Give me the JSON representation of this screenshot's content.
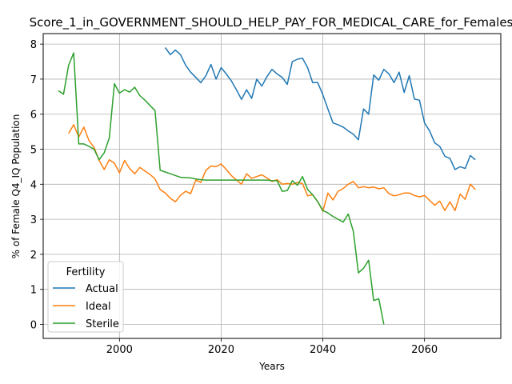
{
  "chart_data": {
    "type": "line",
    "title": "Score_1_in_GOVERNMENT_SHOULD_HELP_PAY_FOR_MEDICAL_CARE_for_Females",
    "xlabel": "Years",
    "ylabel": "% of Female Q4_IQ Population",
    "xlim": [
      1985,
      2075
    ],
    "ylim": [
      -0.4,
      8.3
    ],
    "xticks": [
      2000,
      2020,
      2040,
      2060
    ],
    "yticks": [
      0,
      1,
      2,
      3,
      4,
      5,
      6,
      7,
      8
    ],
    "grid": true,
    "legend": {
      "title": "Fertility",
      "placement": "lower-left"
    },
    "series": [
      {
        "name": "Actual",
        "color": "#1f77b4",
        "x": [
          2009,
          2010,
          2011,
          2012,
          2013,
          2014,
          2015,
          2016,
          2017,
          2018,
          2019,
          2020,
          2021,
          2022,
          2023,
          2024,
          2025,
          2026,
          2027,
          2028,
          2029,
          2030,
          2031,
          2032,
          2033,
          2034,
          2035,
          2036,
          2037,
          2038,
          2039,
          2040,
          2041,
          2042,
          2043,
          2044,
          2045,
          2046,
          2047,
          2048,
          2049,
          2050,
          2051,
          2052,
          2053,
          2054,
          2055,
          2056,
          2057,
          2058,
          2059,
          2060,
          2061,
          2062,
          2063,
          2064,
          2065,
          2066,
          2067,
          2068,
          2069,
          2070
        ],
        "y": [
          7.9,
          7.7,
          7.83,
          7.7,
          7.4,
          7.2,
          7.05,
          6.9,
          7.1,
          7.42,
          7.0,
          7.33,
          7.15,
          6.95,
          6.7,
          6.42,
          6.7,
          6.45,
          7.0,
          6.8,
          7.07,
          7.28,
          7.15,
          7.05,
          6.85,
          7.5,
          7.57,
          7.6,
          7.33,
          6.9,
          6.9,
          6.55,
          6.15,
          5.75,
          5.7,
          5.63,
          5.52,
          5.43,
          5.27,
          6.15,
          6.0,
          7.12,
          6.97,
          7.28,
          7.15,
          6.9,
          7.2,
          6.62,
          7.1,
          6.43,
          6.4,
          5.75,
          5.52,
          5.18,
          5.08,
          4.8,
          4.74,
          4.42,
          4.5,
          4.45,
          4.82,
          4.7
        ]
      },
      {
        "name": "Ideal",
        "color": "#ff7f0e",
        "x": [
          1990,
          1991,
          1992,
          1993,
          1994,
          1995,
          1996,
          1997,
          1998,
          1999,
          2000,
          2001,
          2002,
          2003,
          2004,
          2005,
          2006,
          2007,
          2008,
          2009,
          2010,
          2011,
          2012,
          2013,
          2014,
          2015,
          2016,
          2017,
          2018,
          2019,
          2020,
          2021,
          2022,
          2023,
          2024,
          2025,
          2026,
          2027,
          2028,
          2029,
          2030,
          2031,
          2032,
          2033,
          2034,
          2035,
          2036,
          2037,
          2038,
          2039,
          2040,
          2041,
          2042,
          2043,
          2044,
          2045,
          2046,
          2047,
          2048,
          2049,
          2050,
          2051,
          2052,
          2053,
          2054,
          2055,
          2056,
          2057,
          2058,
          2059,
          2060,
          2061,
          2062,
          2063,
          2064,
          2065,
          2066,
          2067,
          2068,
          2069,
          2070
        ],
        "y": [
          5.45,
          5.7,
          5.35,
          5.63,
          5.25,
          5.05,
          4.68,
          4.42,
          4.7,
          4.6,
          4.33,
          4.68,
          4.45,
          4.3,
          4.48,
          4.38,
          4.28,
          4.15,
          3.85,
          3.75,
          3.6,
          3.5,
          3.68,
          3.8,
          3.73,
          4.12,
          4.05,
          4.4,
          4.52,
          4.5,
          4.58,
          4.42,
          4.25,
          4.12,
          4.0,
          4.3,
          4.17,
          4.22,
          4.27,
          4.18,
          4.08,
          4.13,
          4.0,
          4.02,
          4.0,
          4.05,
          4.02,
          3.67,
          3.7,
          3.5,
          3.23,
          3.75,
          3.55,
          3.8,
          3.88,
          4.0,
          4.08,
          3.9,
          3.93,
          3.9,
          3.92,
          3.87,
          3.9,
          3.73,
          3.67,
          3.7,
          3.75,
          3.75,
          3.68,
          3.64,
          3.68,
          3.54,
          3.4,
          3.52,
          3.25,
          3.5,
          3.25,
          3.72,
          3.57,
          4.0,
          3.85
        ]
      },
      {
        "name": "Sterile",
        "color": "#2ca02c",
        "x": [
          1988,
          1989,
          1990,
          1991,
          1992,
          1993,
          1994,
          1995,
          1996,
          1997,
          1998,
          1999,
          2000,
          2001,
          2002,
          2003,
          2004,
          2005,
          2006,
          2007,
          2008,
          2009,
          2010,
          2011,
          2012,
          2013,
          2014,
          2015,
          2016,
          2017,
          2018,
          2019,
          2020,
          2021,
          2022,
          2023,
          2024,
          2025,
          2026,
          2027,
          2028,
          2029,
          2030,
          2031,
          2032,
          2033,
          2034,
          2035,
          2036,
          2037,
          2038,
          2039,
          2040,
          2041,
          2042,
          2043,
          2044,
          2045,
          2046,
          2047,
          2048,
          2049,
          2050,
          2051,
          2052
        ],
        "y": [
          6.67,
          6.57,
          7.4,
          7.75,
          5.15,
          5.15,
          5.08,
          5.0,
          4.7,
          4.9,
          5.32,
          6.87,
          6.6,
          6.7,
          6.63,
          6.77,
          6.53,
          6.4,
          6.25,
          6.1,
          4.4,
          4.35,
          4.3,
          4.25,
          4.2,
          4.19,
          4.18,
          4.15,
          4.13,
          4.12,
          4.12,
          4.12,
          4.12,
          4.12,
          4.12,
          4.12,
          4.12,
          4.12,
          4.12,
          4.12,
          4.12,
          4.12,
          4.1,
          4.1,
          3.8,
          3.82,
          4.1,
          3.97,
          4.22,
          3.85,
          3.7,
          3.5,
          3.25,
          3.18,
          3.08,
          3.0,
          2.92,
          3.15,
          2.65,
          1.47,
          1.6,
          1.83,
          0.68,
          0.73,
          0.0
        ]
      }
    ]
  }
}
